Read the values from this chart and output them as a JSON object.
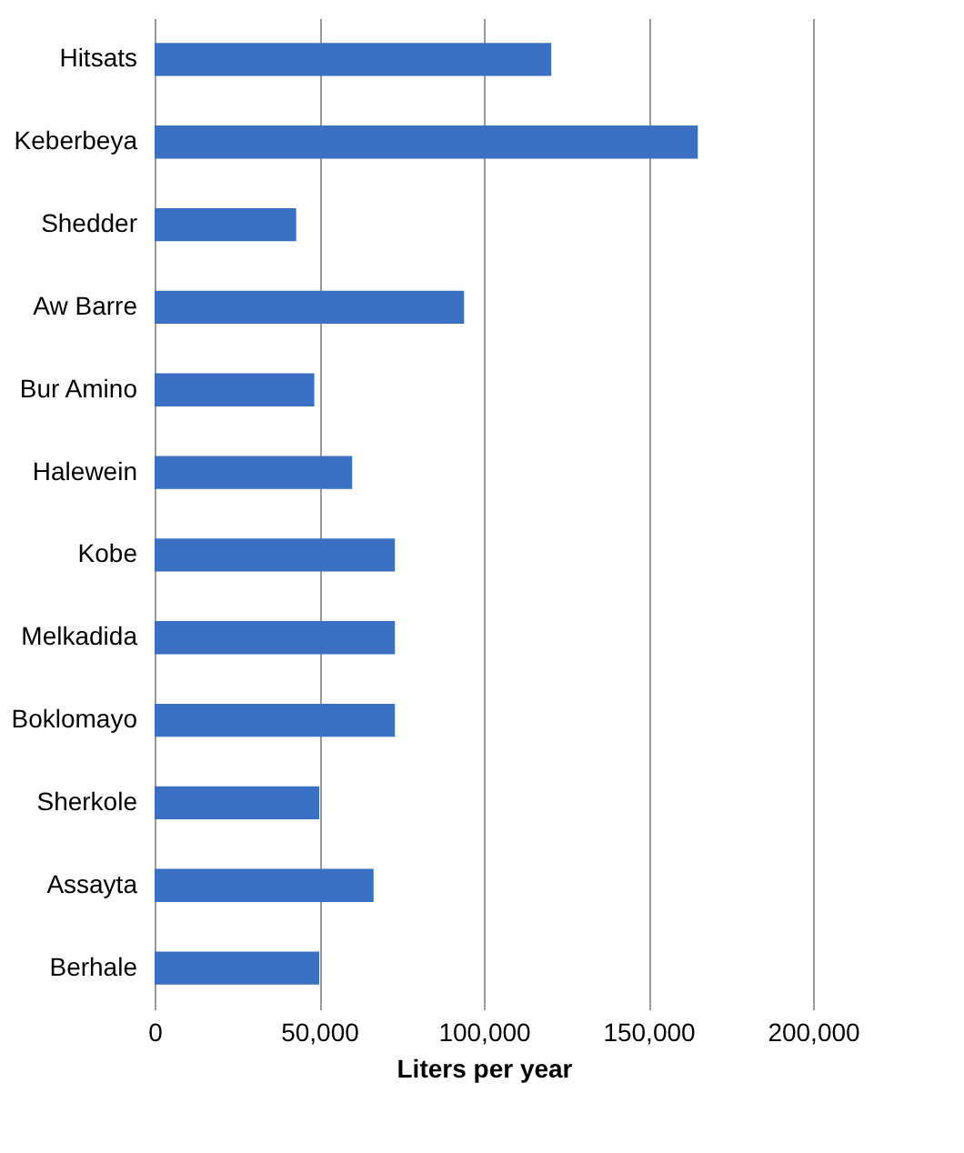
{
  "chart_data": {
    "type": "bar",
    "orientation": "horizontal",
    "xlabel": "Liters per year",
    "categories": [
      "Hitsats",
      "Keberbeya",
      "Shedder",
      "Aw Barre",
      "Bur Amino",
      "Halewein",
      "Kobe",
      "Melkadida",
      "Boklomayo",
      "Sherkole",
      "Assayta",
      "Berhale"
    ],
    "values": [
      120500,
      165000,
      43000,
      94000,
      48500,
      60000,
      73000,
      73000,
      73000,
      50000,
      66500,
      50000
    ],
    "color": "#3a6fc4",
    "xlim": [
      0,
      200000
    ],
    "xticks": [
      0,
      {
        "value": 50000,
        "label": "50,000"
      },
      {
        "value": 100000,
        "label": "100,000"
      },
      {
        "value": 150000,
        "label": "150,000"
      },
      {
        "value": 200000,
        "label": "200,000"
      }
    ],
    "grid": "x"
  }
}
